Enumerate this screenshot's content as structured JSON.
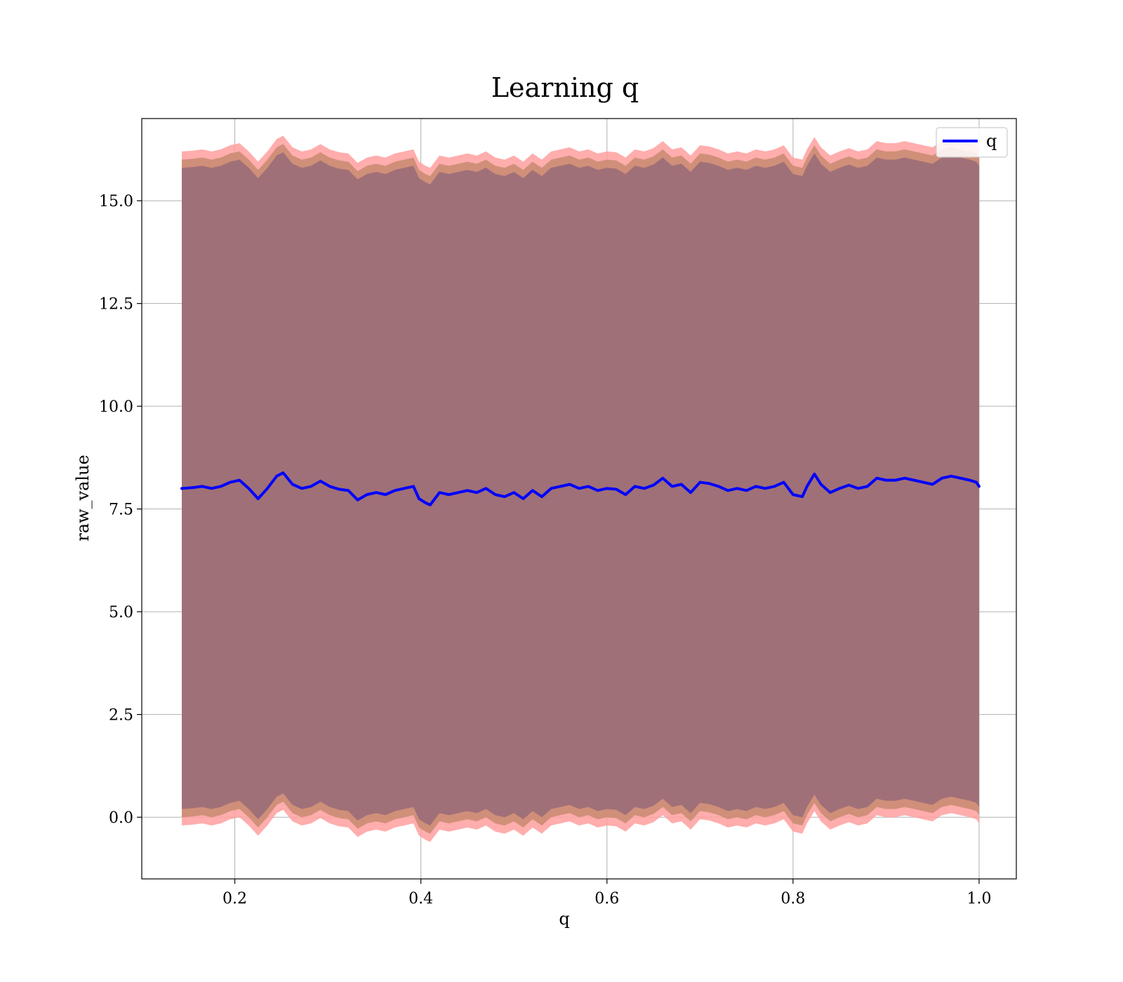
{
  "chart_data": {
    "type": "line",
    "title": "Learning q",
    "xlabel": "q",
    "ylabel": "raw_value",
    "xlim": [
      0.1,
      1.04
    ],
    "ylim": [
      -1.5,
      17.0
    ],
    "grid": true,
    "xticks": [
      0.2,
      0.4,
      0.6,
      0.8,
      1.0
    ],
    "xtick_labels": [
      "0.2",
      "0.4",
      "0.6",
      "0.8",
      "1.0"
    ],
    "yticks": [
      0.0,
      2.5,
      5.0,
      7.5,
      10.0,
      12.5,
      15.0
    ],
    "ytick_labels": [
      "0.0",
      "2.5",
      "5.0",
      "7.5",
      "10.0",
      "12.5",
      "15.0"
    ],
    "legend_position": "top-right",
    "colors": {
      "line": "#0000ff",
      "band_outer": "#ff9f9f",
      "band_middle": "#c88a70",
      "band_inner": "#a07078",
      "grid": "#b0b0b0",
      "axes": "#000000"
    },
    "series": [
      {
        "name": "q",
        "band_offsets": {
          "outer": 8.2,
          "middle": 8.0,
          "inner": 7.8
        },
        "x": [
          0.143,
          0.155,
          0.165,
          0.175,
          0.185,
          0.195,
          0.205,
          0.215,
          0.225,
          0.235,
          0.245,
          0.252,
          0.262,
          0.272,
          0.282,
          0.292,
          0.302,
          0.312,
          0.322,
          0.332,
          0.342,
          0.352,
          0.362,
          0.372,
          0.382,
          0.392,
          0.398,
          0.405,
          0.41,
          0.42,
          0.43,
          0.44,
          0.45,
          0.46,
          0.47,
          0.48,
          0.49,
          0.5,
          0.51,
          0.52,
          0.53,
          0.54,
          0.55,
          0.56,
          0.57,
          0.58,
          0.59,
          0.6,
          0.61,
          0.62,
          0.63,
          0.64,
          0.65,
          0.66,
          0.67,
          0.68,
          0.69,
          0.7,
          0.71,
          0.72,
          0.73,
          0.74,
          0.75,
          0.76,
          0.77,
          0.78,
          0.79,
          0.8,
          0.81,
          0.815,
          0.823,
          0.83,
          0.84,
          0.85,
          0.86,
          0.87,
          0.88,
          0.89,
          0.9,
          0.91,
          0.92,
          0.93,
          0.94,
          0.95,
          0.96,
          0.97,
          0.98,
          0.99,
          0.997,
          1.0
        ],
        "values": [
          8.0,
          8.02,
          8.05,
          8.0,
          8.05,
          8.15,
          8.2,
          8.0,
          7.75,
          8.0,
          8.3,
          8.38,
          8.1,
          8.0,
          8.05,
          8.18,
          8.05,
          7.98,
          7.95,
          7.72,
          7.85,
          7.9,
          7.85,
          7.95,
          8.0,
          8.05,
          7.75,
          7.65,
          7.6,
          7.9,
          7.85,
          7.9,
          7.95,
          7.9,
          8.0,
          7.85,
          7.8,
          7.9,
          7.75,
          7.95,
          7.8,
          8.0,
          8.05,
          8.1,
          8.0,
          8.05,
          7.95,
          8.0,
          7.98,
          7.85,
          8.05,
          8.0,
          8.08,
          8.25,
          8.05,
          8.1,
          7.9,
          8.15,
          8.12,
          8.05,
          7.95,
          8.0,
          7.95,
          8.05,
          8.0,
          8.05,
          8.15,
          7.85,
          7.8,
          8.05,
          8.35,
          8.1,
          7.9,
          8.0,
          8.08,
          8.0,
          8.05,
          8.25,
          8.2,
          8.2,
          8.25,
          8.2,
          8.15,
          8.1,
          8.25,
          8.3,
          8.25,
          8.2,
          8.15,
          8.05
        ]
      }
    ]
  }
}
